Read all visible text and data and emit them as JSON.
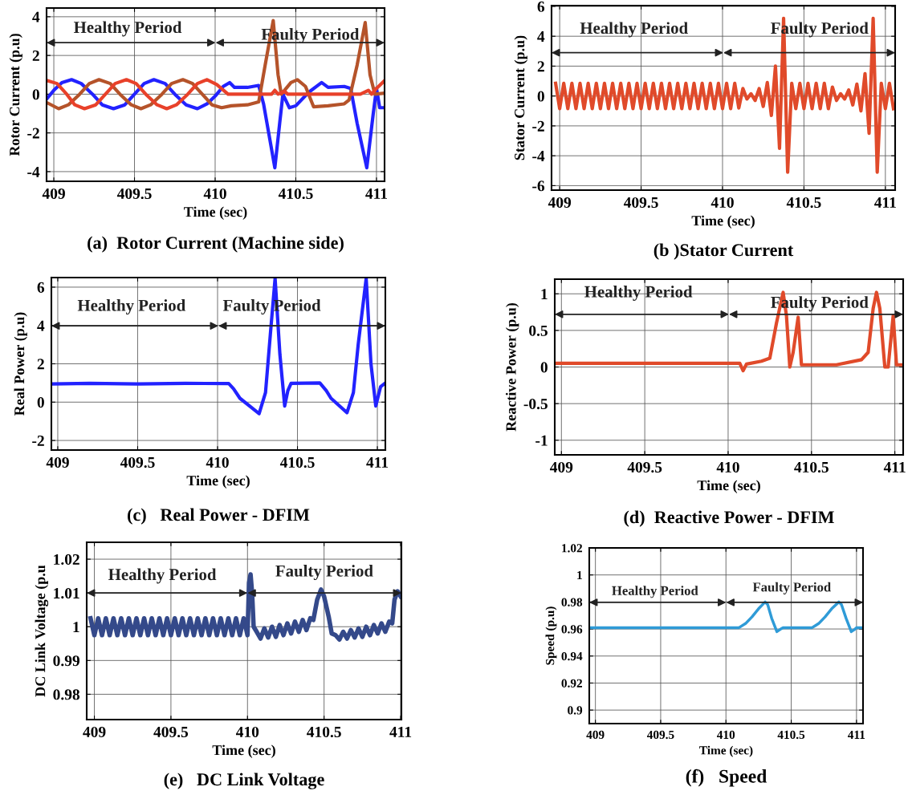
{
  "chart_data": [
    {
      "type": "line",
      "title": "(a)  Rotor Current (Machine side)",
      "xlabel": "Time (sec)",
      "ylabel": "Rotor Current (p.u)",
      "xlim": [
        408.955,
        411.05
      ],
      "ylim": [
        -4.5,
        4.45
      ],
      "xticks": [
        409,
        409.5,
        410,
        410.5,
        411
      ],
      "yticks": [
        -4,
        -2,
        0,
        2,
        4
      ],
      "grid": true,
      "legend": false,
      "annotations": [
        "Healthy Period",
        "Faulty Period"
      ],
      "series": [
        {
          "color": "#2222ff",
          "x": [
            408.96,
            409.0,
            409.05,
            409.11,
            409.17,
            409.24,
            409.3,
            409.37,
            409.44,
            409.5,
            409.56,
            409.62,
            409.69,
            409.75,
            409.82,
            409.89,
            409.95,
            410.0,
            410.05,
            410.09,
            410.12,
            410.2,
            410.27,
            410.3,
            410.37,
            410.4,
            410.42,
            410.46,
            410.5,
            410.58,
            410.66,
            410.7,
            410.8,
            410.84,
            410.88,
            410.94,
            410.98,
            411.0,
            411.02,
            411.05
          ],
          "values": [
            -0.2,
            0.2,
            0.6,
            0.75,
            0.55,
            0,
            -0.55,
            -0.75,
            -0.55,
            0,
            0.55,
            0.75,
            0.55,
            0,
            -0.55,
            -0.75,
            -0.5,
            -0.1,
            0.4,
            0.6,
            0.35,
            0.35,
            0.45,
            -0.5,
            -3.8,
            -1.5,
            0,
            -0.7,
            -0.6,
            0.1,
            0.6,
            0.35,
            0.4,
            0.3,
            -1.5,
            -3.8,
            -1,
            0.3,
            -0.7,
            -0.7
          ]
        },
        {
          "color": "#b5532a",
          "x": [
            408.96,
            409.03,
            409.09,
            409.16,
            409.22,
            409.28,
            409.35,
            409.41,
            409.48,
            409.54,
            409.6,
            409.67,
            409.73,
            409.8,
            409.86,
            409.92,
            409.98,
            410.04,
            410.1,
            410.2,
            410.27,
            410.31,
            410.36,
            410.39,
            410.41,
            410.43,
            410.47,
            410.51,
            410.56,
            410.61,
            410.7,
            410.8,
            410.83,
            410.88,
            410.93,
            410.96,
            410.99,
            411.05
          ],
          "values": [
            -0.45,
            -0.75,
            -0.55,
            0,
            0.55,
            0.75,
            0.55,
            0,
            -0.55,
            -0.75,
            -0.55,
            0,
            0.55,
            0.75,
            0.55,
            0,
            -0.55,
            -0.7,
            -0.6,
            -0.55,
            -0.4,
            1.5,
            3.8,
            1,
            0,
            0.2,
            0.6,
            0.75,
            0.4,
            -0.65,
            -0.6,
            -0.5,
            -0.3,
            1.5,
            3.7,
            1,
            0,
            0.05
          ]
        },
        {
          "color": "#e8412a",
          "x": [
            408.96,
            409.02,
            409.08,
            409.13,
            409.19,
            409.26,
            409.32,
            409.38,
            409.45,
            409.51,
            409.57,
            409.64,
            409.7,
            409.76,
            409.83,
            409.89,
            409.95,
            410.01,
            410.08,
            410.2,
            410.35,
            410.37,
            410.39,
            410.43,
            410.45,
            410.9,
            410.95,
            410.97,
            411.0,
            411.05
          ],
          "values": [
            0.7,
            0.55,
            0,
            -0.55,
            -0.75,
            -0.55,
            0,
            0.55,
            0.75,
            0.55,
            0,
            -0.55,
            -0.75,
            -0.55,
            0,
            0.55,
            0.75,
            0.5,
            0,
            0,
            0,
            0.2,
            0,
            0.15,
            0,
            0,
            0.2,
            0,
            0.3,
            0.7
          ]
        }
      ]
    },
    {
      "type": "line",
      "title": "(b )Stator Current",
      "xlabel": "Time (sec)",
      "ylabel": "Stator Current (p.u)",
      "xlim": [
        408.95,
        411.06
      ],
      "ylim": [
        -6.3,
        6.05
      ],
      "xticks": [
        409,
        409.5,
        410,
        410.5,
        411
      ],
      "yticks": [
        -6,
        -4,
        -2,
        0,
        2,
        4,
        6
      ],
      "grid": true,
      "legend": false,
      "annotations": [
        "Healthy Period",
        "Faulty Period"
      ],
      "series": [
        {
          "color": "#e04a2a",
          "x": [
            408.975,
            409.0,
            409.025,
            409.05,
            409.075,
            409.1,
            409.125,
            409.15,
            409.175,
            409.2,
            409.225,
            409.25,
            409.275,
            409.3,
            409.325,
            409.35,
            409.375,
            409.4,
            409.425,
            409.45,
            409.475,
            409.5,
            409.525,
            409.55,
            409.575,
            409.6,
            409.625,
            409.65,
            409.675,
            409.7,
            409.725,
            409.75,
            409.775,
            409.8,
            409.825,
            409.85,
            409.875,
            409.9,
            409.925,
            409.95,
            409.975,
            410.0,
            410.025,
            410.05,
            410.075,
            410.1,
            410.125,
            410.15,
            410.175,
            410.2,
            410.225,
            410.25,
            410.275,
            410.3,
            410.325,
            410.35,
            410.375,
            410.4,
            410.425,
            410.45,
            410.475,
            410.5,
            410.525,
            410.55,
            410.575,
            410.6,
            410.625,
            410.65,
            410.675,
            410.7,
            410.725,
            410.75,
            410.775,
            410.8,
            410.825,
            410.85,
            410.875,
            410.9,
            410.925,
            410.95,
            410.975,
            411.0,
            411.025,
            411.05
          ],
          "values": [
            0.85,
            -0.85,
            0.85,
            -0.85,
            0.85,
            -0.85,
            0.85,
            -0.85,
            0.85,
            -0.85,
            0.85,
            -0.85,
            0.85,
            -0.85,
            0.85,
            -0.85,
            0.85,
            -0.85,
            0.85,
            -0.85,
            0.85,
            -0.85,
            0.85,
            -0.85,
            0.85,
            -0.85,
            0.85,
            -0.85,
            0.85,
            -0.85,
            0.85,
            -0.85,
            0.85,
            -0.85,
            0.85,
            -0.85,
            0.85,
            -0.85,
            0.85,
            -0.85,
            0.85,
            -0.85,
            0.85,
            -0.85,
            0.85,
            -0.8,
            0.5,
            -0.2,
            0.15,
            -0.3,
            0.5,
            -0.7,
            0.9,
            -1.3,
            2.0,
            -3.5,
            5.2,
            -5.1,
            0.85,
            -0.85,
            0.85,
            -0.85,
            0.85,
            -0.85,
            0.85,
            -0.85,
            0.85,
            -0.85,
            0.6,
            -0.3,
            0.15,
            -0.2,
            0.4,
            -0.6,
            0.8,
            -1.0,
            1.5,
            -2.5,
            5.2,
            -5.1,
            0.85,
            -0.85,
            0.85,
            -0.85
          ]
        }
      ]
    },
    {
      "type": "line",
      "title": "(c)   Real Power - DFIM",
      "xlabel": "Time (sec)",
      "ylabel": "Real Power (p.u)",
      "xlim": [
        408.96,
        411.05
      ],
      "ylim": [
        -2.5,
        6.5
      ],
      "xticks": [
        409,
        409.5,
        410,
        410.5,
        411
      ],
      "yticks": [
        -2,
        0,
        2,
        4,
        6
      ],
      "grid": true,
      "legend": false,
      "annotations": [
        "Healthy Period",
        "Faulty Period"
      ],
      "series": [
        {
          "color": "#2222ff",
          "x": [
            408.96,
            409.2,
            409.5,
            409.8,
            410.07,
            410.1,
            410.14,
            410.26,
            410.3,
            410.33,
            410.36,
            410.39,
            410.42,
            410.44,
            410.46,
            410.64,
            410.68,
            410.71,
            410.81,
            410.85,
            410.88,
            410.93,
            410.96,
            410.99,
            411.02,
            411.05
          ],
          "values": [
            0.95,
            0.98,
            0.95,
            0.98,
            0.97,
            0.7,
            0.2,
            -0.6,
            0.5,
            3.5,
            6.45,
            2.5,
            -0.2,
            0.6,
            0.98,
            1.0,
            0.6,
            0.2,
            -0.55,
            0.5,
            3.0,
            6.45,
            2.0,
            -0.2,
            0.8,
            1.0
          ]
        }
      ]
    },
    {
      "type": "line",
      "title": "(d)  Reactive Power - DFIM",
      "xlabel": "Time (sec)",
      "ylabel": "Reactive Power (p.u)",
      "xlim": [
        408.96,
        411.05
      ],
      "ylim": [
        -1.2,
        1.2
      ],
      "xticks": [
        409,
        409.5,
        410,
        410.5,
        411
      ],
      "yticks": [
        -1,
        -0.5,
        0,
        0.5,
        1
      ],
      "grid": true,
      "legend": false,
      "annotations": [
        "Healthy Period",
        "Faulty Period"
      ],
      "series": [
        {
          "color": "#e04a2a",
          "x": [
            408.96,
            409.5,
            410.0,
            410.07,
            410.09,
            410.11,
            410.2,
            410.25,
            410.29,
            410.33,
            410.35,
            410.37,
            410.39,
            410.42,
            410.44,
            410.65,
            410.8,
            410.84,
            410.87,
            410.89,
            410.91,
            410.94,
            410.96,
            410.99,
            411.01,
            411.05
          ],
          "values": [
            0.05,
            0.05,
            0.05,
            0.05,
            -0.05,
            0.04,
            0.08,
            0.12,
            0.6,
            1.02,
            0.7,
            0.0,
            0.2,
            0.68,
            0.03,
            0.03,
            0.1,
            0.2,
            0.8,
            1.02,
            0.8,
            0.0,
            0.0,
            0.7,
            0.03,
            0.03
          ]
        }
      ]
    },
    {
      "type": "line",
      "title": "(e)   DC Link Voltage",
      "xlabel": "Time (sec)",
      "ylabel": "DC Link Voltage (p.u",
      "xlim": [
        408.95,
        411.005
      ],
      "ylim": [
        0.9725,
        1.025
      ],
      "xticks": [
        409,
        409.5,
        410,
        410.5,
        411
      ],
      "yticks": [
        0.98,
        0.99,
        1,
        1.01,
        1.02
      ],
      "grid": true,
      "legend": false,
      "annotations": [
        "Healthy Period",
        "Faulty Period"
      ],
      "series": [
        {
          "color": "#34498a",
          "x": [
            408.975,
            409.0,
            409.025,
            409.05,
            409.075,
            409.1,
            409.125,
            409.15,
            409.175,
            409.2,
            409.225,
            409.25,
            409.275,
            409.3,
            409.325,
            409.35,
            409.375,
            409.4,
            409.425,
            409.45,
            409.475,
            409.5,
            409.525,
            409.55,
            409.575,
            409.6,
            409.625,
            409.65,
            409.675,
            409.7,
            409.725,
            409.75,
            409.775,
            409.8,
            409.825,
            409.85,
            409.875,
            409.9,
            409.925,
            409.95,
            409.975,
            410.0,
            410.01,
            410.02,
            410.03,
            410.04,
            410.06,
            410.085,
            410.11,
            410.135,
            410.16,
            410.185,
            410.21,
            410.235,
            410.26,
            410.285,
            410.31,
            410.335,
            410.36,
            410.385,
            410.41,
            410.43,
            410.455,
            410.48,
            410.5,
            410.53,
            410.55,
            410.575,
            410.6,
            410.625,
            410.65,
            410.675,
            410.7,
            410.725,
            410.75,
            410.775,
            410.8,
            410.825,
            410.85,
            410.875,
            410.9,
            410.925,
            410.945,
            410.96,
            410.98,
            411.0
          ],
          "values": [
            1.0025,
            0.9975,
            1.0025,
            0.9975,
            1.0025,
            0.9975,
            1.0025,
            0.9975,
            1.0025,
            0.9975,
            1.0025,
            0.9975,
            1.0025,
            0.9975,
            1.0025,
            0.9975,
            1.0025,
            0.9975,
            1.0025,
            0.9975,
            1.0025,
            0.9975,
            1.0025,
            0.9975,
            1.0025,
            0.9975,
            1.0025,
            0.9975,
            1.0025,
            0.9975,
            1.0025,
            0.9975,
            1.0025,
            0.9975,
            1.0025,
            0.9975,
            1.0025,
            0.9975,
            1.0025,
            0.9975,
            1.0025,
            0.9975,
            1.013,
            1.0155,
            1.01,
            1.0,
            0.9985,
            0.9965,
            0.9995,
            0.9968,
            1.0,
            0.997,
            1.0005,
            0.9975,
            1.001,
            0.998,
            1.0015,
            0.9985,
            1.002,
            0.999,
            1.0025,
            1.002,
            1.008,
            1.011,
            1.009,
            1.003,
            0.998,
            0.9975,
            0.9962,
            0.9985,
            0.9965,
            0.999,
            0.9968,
            0.9995,
            0.997,
            1.0,
            0.9975,
            1.0005,
            0.998,
            1.001,
            0.9985,
            1.0015,
            1.001,
            1.008,
            1.0105,
            1.009
          ]
        }
      ]
    },
    {
      "type": "line",
      "title": "(f)   Speed",
      "xlabel": "Time (sec)",
      "ylabel": "Speed (p.u)",
      "xlim": [
        408.953,
        411.05
      ],
      "ylim": [
        0.89,
        1.02
      ],
      "xticks": [
        409,
        409.5,
        410,
        410.5,
        411
      ],
      "yticks": [
        0.9,
        0.92,
        0.94,
        0.96,
        0.98,
        1,
        1.02
      ],
      "grid": true,
      "legend": false,
      "annotations": [
        "Healthy Period",
        "Faulty Period"
      ],
      "series": [
        {
          "color": "#2f9bd7",
          "x": [
            408.955,
            410.1,
            410.15,
            410.2,
            410.25,
            410.3,
            410.32,
            410.35,
            410.39,
            410.42,
            410.44,
            410.66,
            410.71,
            410.76,
            410.81,
            410.865,
            410.885,
            410.92,
            410.96,
            410.99,
            411.0,
            411.05
          ],
          "values": [
            0.961,
            0.961,
            0.964,
            0.969,
            0.975,
            0.98,
            0.978,
            0.968,
            0.958,
            0.96,
            0.961,
            0.961,
            0.964,
            0.969,
            0.975,
            0.98,
            0.978,
            0.968,
            0.958,
            0.96,
            0.961,
            0.961
          ]
        }
      ]
    }
  ]
}
